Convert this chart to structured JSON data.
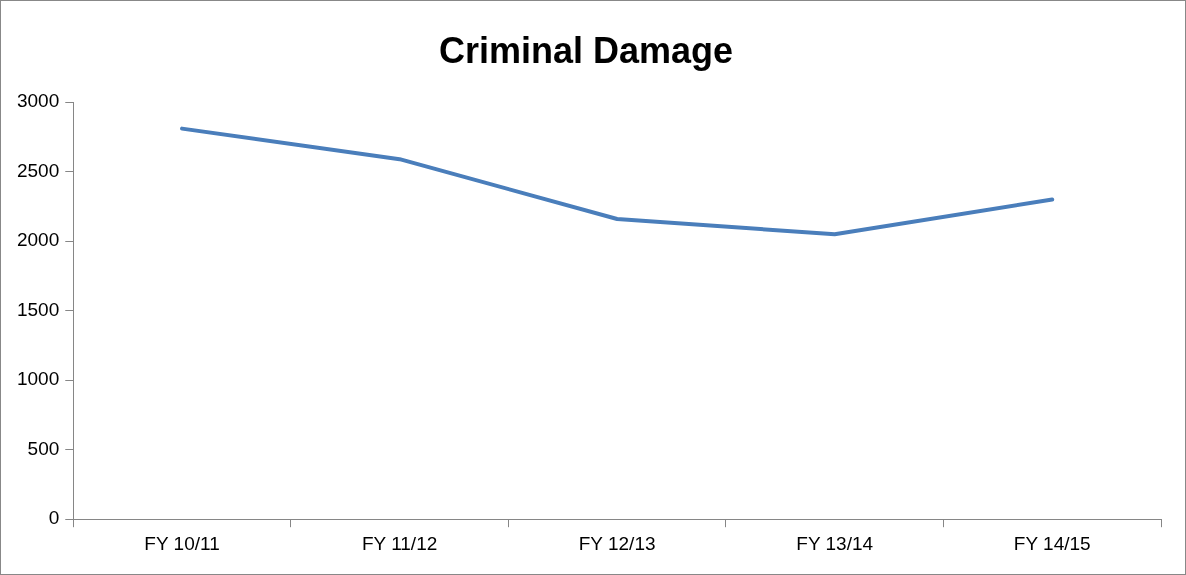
{
  "chart_data": {
    "type": "line",
    "title": "Criminal Damage",
    "categories": [
      "FY 10/11",
      "FY 11/12",
      "FY 12/13",
      "FY 13/14",
      "FY 14/15"
    ],
    "series": [
      {
        "color": "#4a7ebb",
        "values": [
          2810,
          2590,
          2160,
          2050,
          2300
        ]
      }
    ],
    "ylim": [
      0,
      3000
    ],
    "yticks": [
      0,
      500,
      1000,
      1500,
      2000,
      2500,
      3000
    ],
    "grid": false,
    "legend": false,
    "marker": "none",
    "line_style": "solid"
  }
}
